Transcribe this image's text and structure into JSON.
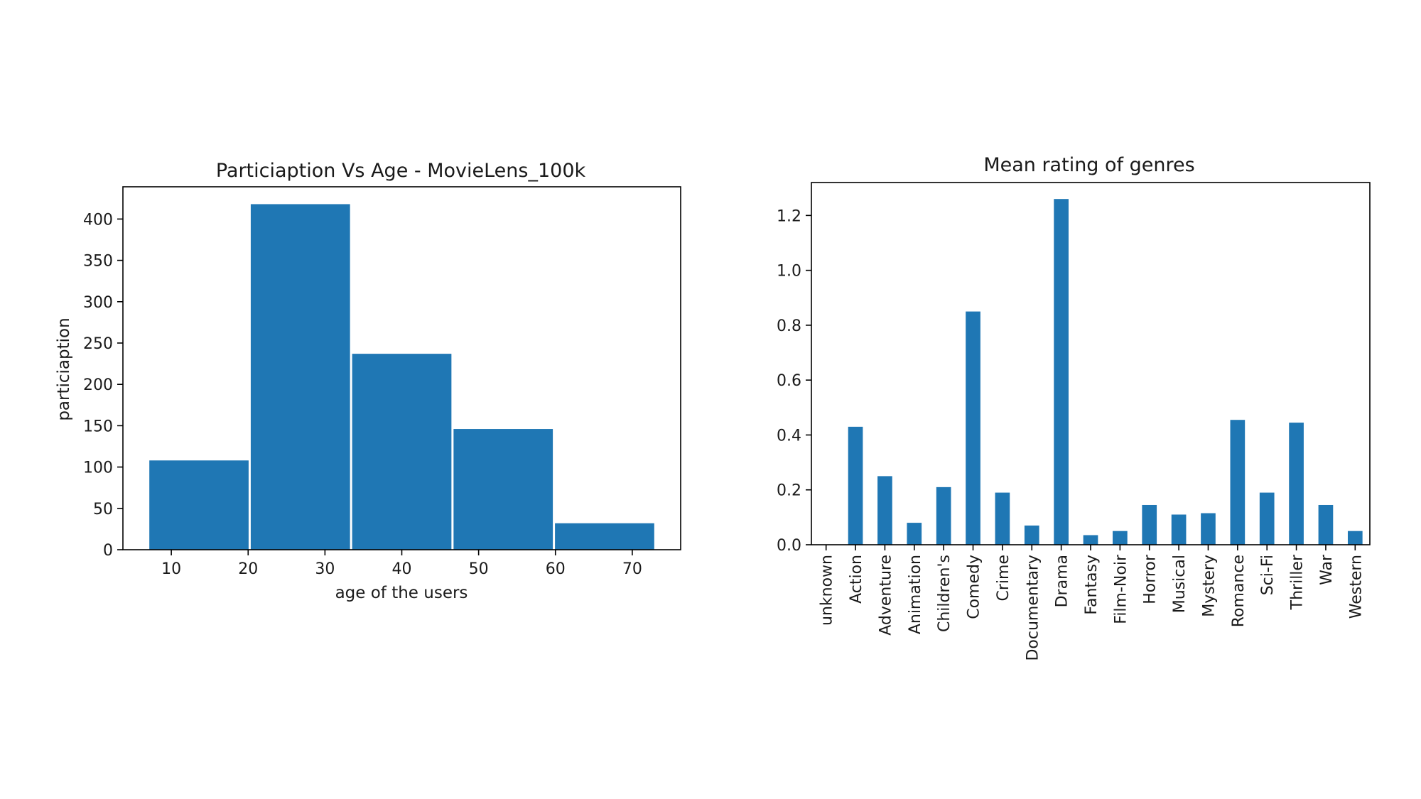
{
  "charts": [
    {
      "chart_data": {
        "type": "bar",
        "subtype": "histogram",
        "title": "Particiaption Vs Age - MovieLens_100k",
        "xlabel": "age of the users",
        "ylabel": "particiaption",
        "bins": [
          {
            "start": 7,
            "end": 20.2,
            "value": 108
          },
          {
            "start": 20.2,
            "end": 33.4,
            "value": 418
          },
          {
            "start": 33.4,
            "end": 46.6,
            "value": 237
          },
          {
            "start": 46.6,
            "end": 59.8,
            "value": 146
          },
          {
            "start": 59.8,
            "end": 73,
            "value": 32
          }
        ],
        "xlim": [
          3.7,
          76.3
        ],
        "ylim": [
          0,
          439
        ],
        "xticks": [
          10,
          20,
          30,
          40,
          50,
          60,
          70
        ],
        "yticks": [
          0,
          50,
          100,
          150,
          200,
          250,
          300,
          350,
          400
        ],
        "grid": false,
        "color": "#1f77b4"
      }
    },
    {
      "chart_data": {
        "type": "bar",
        "title": "Mean rating of genres",
        "xlabel": "",
        "ylabel": "",
        "categories": [
          "unknown",
          "Action",
          "Adventure",
          "Animation",
          "Children's",
          "Comedy",
          "Crime",
          "Documentary",
          "Drama",
          "Fantasy",
          "Film-Noir",
          "Horror",
          "Musical",
          "Mystery",
          "Romance",
          "Sci-Fi",
          "Thriller",
          "War",
          "Western"
        ],
        "values": [
          0.0,
          0.43,
          0.25,
          0.08,
          0.21,
          0.85,
          0.19,
          0.07,
          1.26,
          0.035,
          0.05,
          0.145,
          0.11,
          0.115,
          0.455,
          0.19,
          0.445,
          0.145,
          0.05
        ],
        "ylim": [
          0,
          1.32
        ],
        "yticks": [
          0.0,
          0.2,
          0.4,
          0.6,
          0.8,
          1.0,
          1.2
        ],
        "grid": false,
        "color": "#1f77b4"
      }
    }
  ]
}
